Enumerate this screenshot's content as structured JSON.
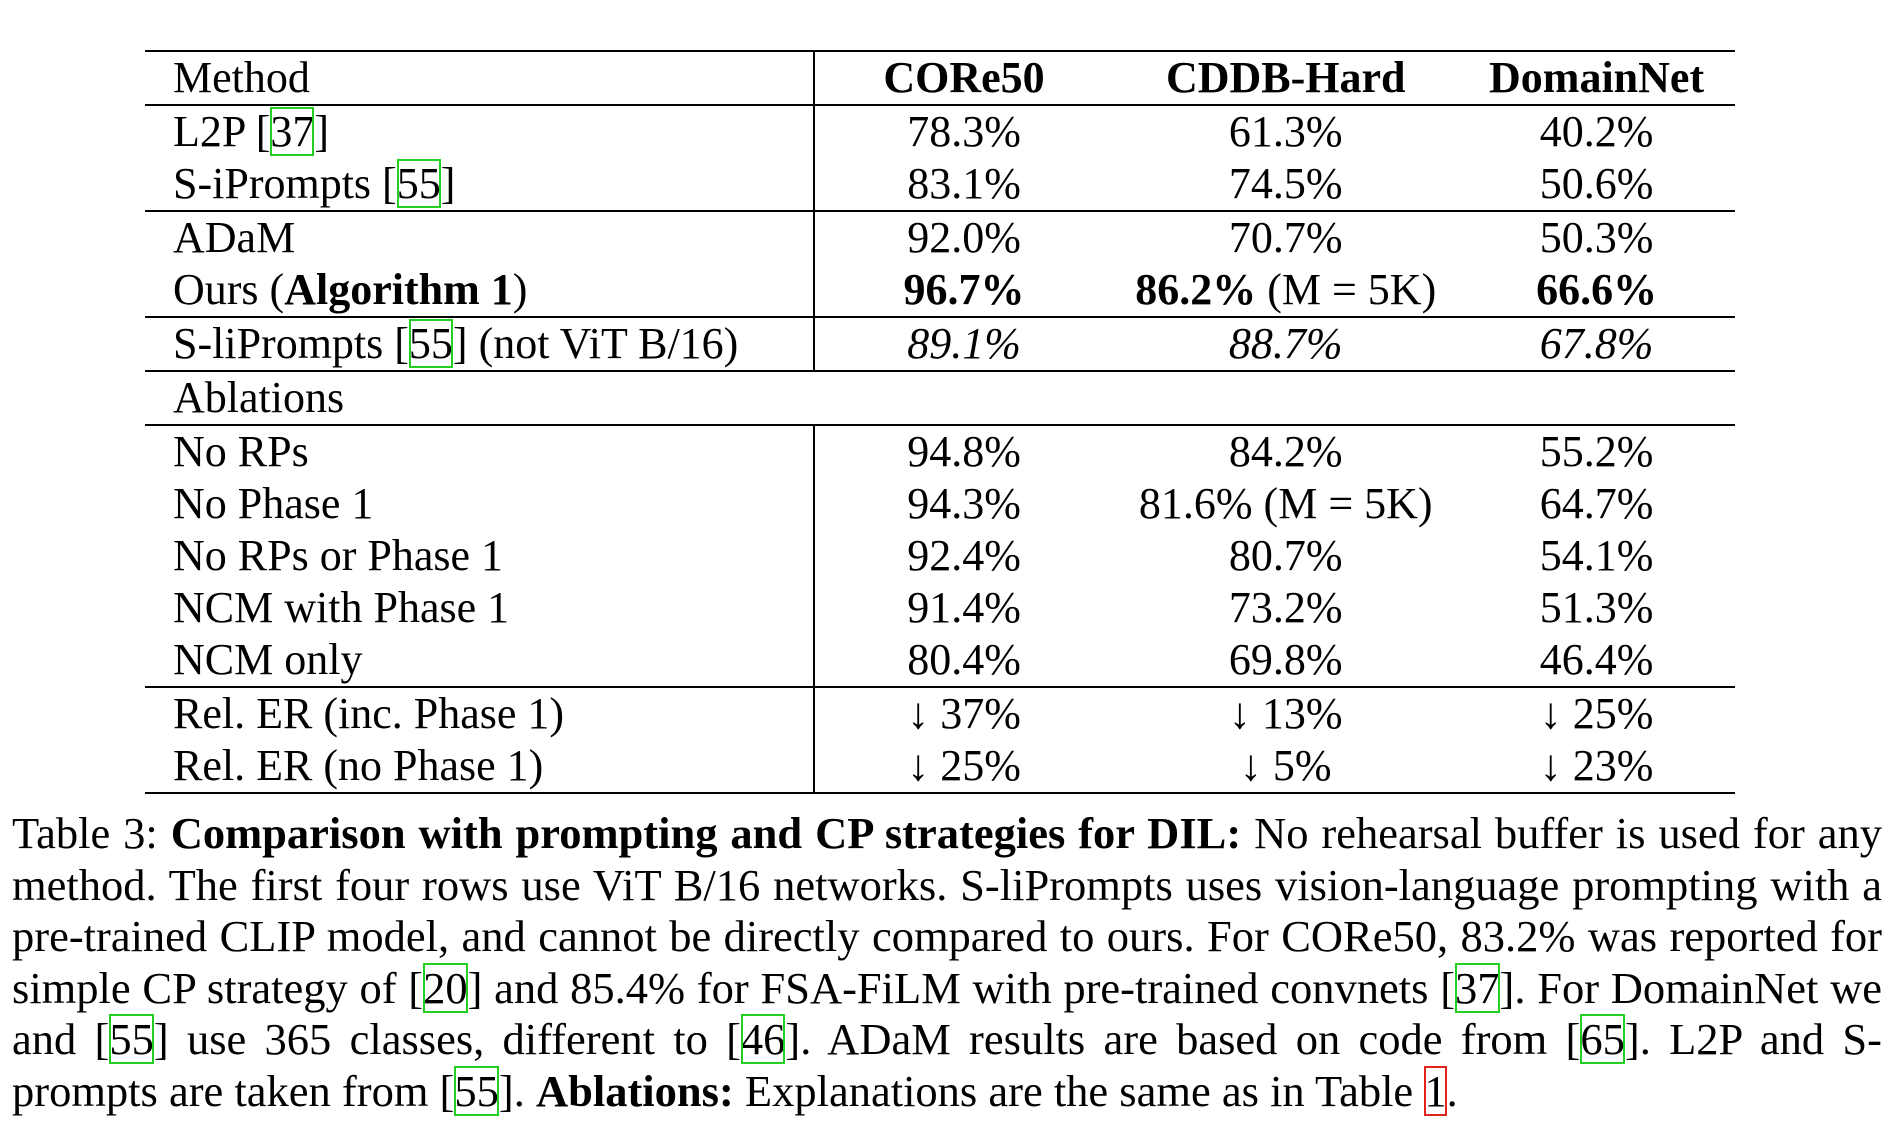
{
  "table": {
    "header": {
      "method": "Method",
      "col1": "CORe50",
      "col2": "CDDB-Hard",
      "col3": "DomainNet"
    },
    "rows": [
      {
        "method_pre": "L2P [",
        "ref": "37",
        "method_post": "]",
        "v1": "78.3%",
        "v2": "61.3%",
        "v3": "40.2%"
      },
      {
        "method_pre": "S-iPrompts [",
        "ref": "55",
        "method_post": "]",
        "v1": "83.1%",
        "v2": "74.5%",
        "v3": "50.6%"
      },
      {
        "method": "ADaM",
        "v1": "92.0%",
        "v2": "70.7%",
        "v3": "50.3%"
      },
      {
        "method_pre": "Ours (",
        "method_bold": "Algorithm 1",
        "method_post": ")",
        "v1": "96.7%",
        "v2_bold": "86.2%",
        "v2_rest": "% (M = 5K)",
        "v3": "66.6%"
      },
      {
        "method_pre": "S-liPrompts [",
        "ref": "55",
        "method_post": "] (not ViT B/16)",
        "v1": "89.1%",
        "v2": "88.7%",
        "v3": "67.8%"
      },
      {
        "method": "Ablations"
      },
      {
        "method": "No RPs",
        "v1": "94.8%",
        "v2": "84.2%",
        "v3": "55.2%"
      },
      {
        "method": "No Phase 1",
        "v1": "94.3%",
        "v2": "81.6% (M = 5K)",
        "v3": "64.7%"
      },
      {
        "method": "No RPs or Phase 1",
        "v1": "92.4%",
        "v2": "80.7%",
        "v3": "54.1%"
      },
      {
        "method": "NCM with Phase 1",
        "v1": "91.4%",
        "v2": "73.2%",
        "v3": "51.3%"
      },
      {
        "method": "NCM only",
        "v1": "80.4%",
        "v2": "69.8%",
        "v3": "46.4%"
      },
      {
        "method": "Rel. ER (inc. Phase 1)",
        "v1": "↓ 37%",
        "v2": "↓ 13%",
        "v3": "↓ 25%"
      },
      {
        "method": "Rel. ER (no Phase 1)",
        "v1": "↓ 25%",
        "v2": "↓ 5%",
        "v3": "↓ 23%"
      }
    ]
  },
  "caption": {
    "label": "Table 3: ",
    "title": "Comparison with prompting and CP strategies for DIL:",
    "t1": " No rehearsal buffer is used for any method. The first four rows use ViT B/16 networks. S-liPrompts uses vision-language prompting with a pre-trained CLIP model, and cannot be directly compared to ours. For CORe50, 83.2% was reported for simple CP strategy of [",
    "r20": "20",
    "t2": "] and 85.4%  for FSA-FiLM with pre-trained convnets [",
    "r37": "37",
    "t3": "]. For DomainNet we and [",
    "r55a": "55",
    "t4": "] use 365 classes, different to [",
    "r46": "46",
    "t5": "]. ADaM results are based on code from [",
    "r65": "65",
    "t6": "]. L2P and S-prompts are taken from [",
    "r55b": "55",
    "t7": "]. ",
    "ablations_bold": "Ablations:",
    "t8": " Explanations are the same as in Table ",
    "r1": "1",
    "t9": "."
  }
}
